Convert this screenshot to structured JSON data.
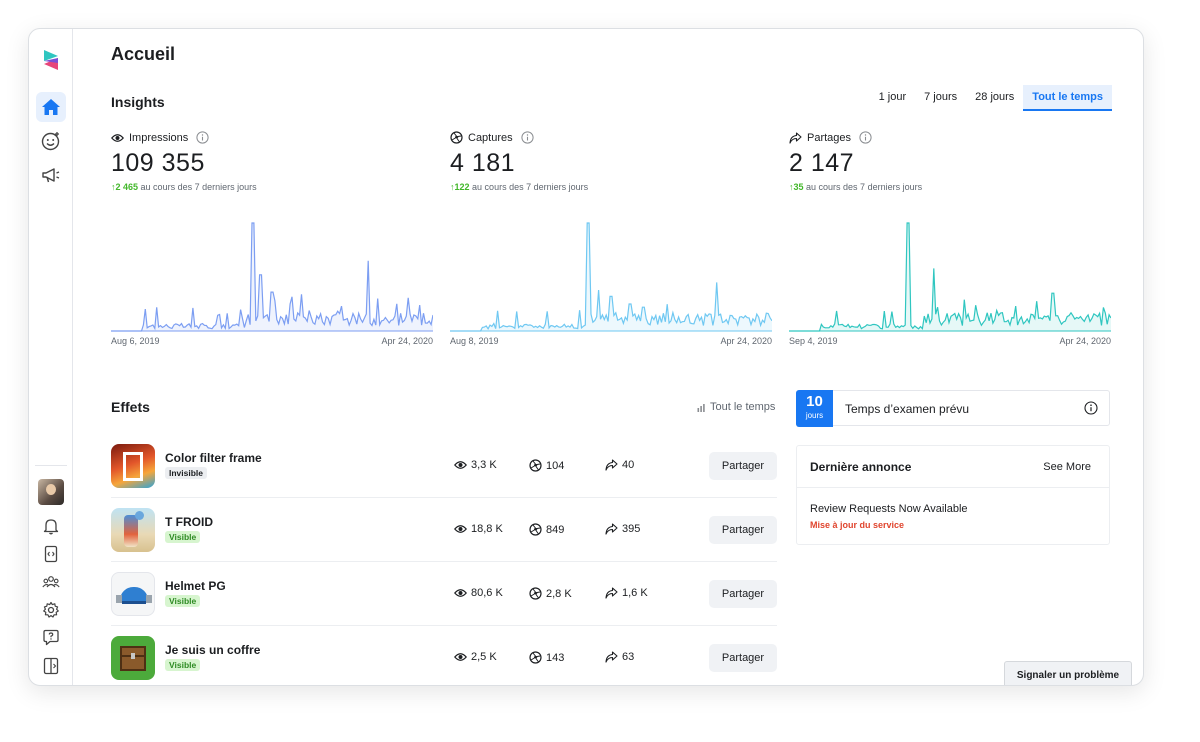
{
  "app": {
    "page_title": "Accueil"
  },
  "insights": {
    "title": "Insights",
    "ranges": [
      "1 jour",
      "7 jours",
      "28 jours",
      "Tout le temps"
    ],
    "active_range": "Tout le temps",
    "metrics": [
      {
        "label": "Impressions",
        "icon": "eye-icon",
        "value": "109 355",
        "delta": "2 465",
        "delta_text": "au cours des 7 derniers jours",
        "start_date": "Aug 6, 2019",
        "end_date": "Apr 24, 2020",
        "color": "#7c9ef2"
      },
      {
        "label": "Captures",
        "icon": "aperture-icon",
        "value": "4 181",
        "delta": "122",
        "delta_text": "au cours des 7 derniers jours",
        "start_date": "Aug 8, 2019",
        "end_date": "Apr 24, 2020",
        "color": "#6fc8f2"
      },
      {
        "label": "Partages",
        "icon": "share-icon",
        "value": "2 147",
        "delta": "35",
        "delta_text": "au cours des 7 derniers jours",
        "start_date": "Sep 4, 2019",
        "end_date": "Apr 24, 2020",
        "color": "#2fc6c0"
      }
    ]
  },
  "effects": {
    "title": "Effets",
    "filter_label": "Tout le temps",
    "share_label": "Partager",
    "items": [
      {
        "name": "Color filter frame",
        "status": "Invisible",
        "impressions": "3,3 K",
        "captures": "104",
        "shares": "40"
      },
      {
        "name": "T FROID",
        "status": "Visible",
        "impressions": "18,8 K",
        "captures": "849",
        "shares": "395"
      },
      {
        "name": "Helmet PG",
        "status": "Visible",
        "impressions": "80,6 K",
        "captures": "2,8 K",
        "shares": "1,6 K"
      },
      {
        "name": "Je suis un coffre",
        "status": "Visible",
        "impressions": "2,5 K",
        "captures": "143",
        "shares": "63"
      }
    ]
  },
  "review": {
    "days_value": "10",
    "days_unit": "jours",
    "label": "Temps d’examen prévu"
  },
  "announcement": {
    "title": "Dernière annonce",
    "see_more": "See More",
    "text": "Review Requests Now Available",
    "tag": "Mise à jour du service"
  },
  "report_button": "Signaler un problème",
  "colors": {
    "accent": "#1877f2",
    "positive": "#42b72a",
    "visible_badge_bg": "#d7f5cf",
    "tag": "#e0452e"
  }
}
